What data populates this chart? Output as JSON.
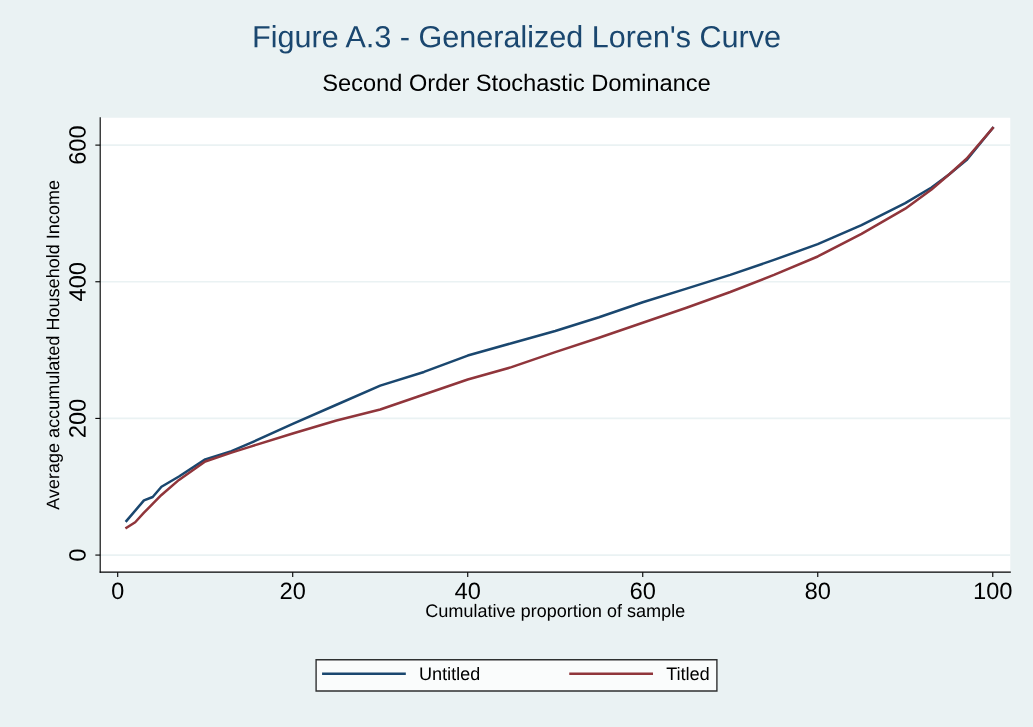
{
  "chart_data": {
    "type": "line",
    "title": "Figure A.3 - Generalized Loren's Curve",
    "subtitle": "Second Order Stochastic Dominance",
    "xlabel": "Cumulative proportion of sample",
    "ylabel": "Average accumulated Household Income",
    "xlim": [
      -2,
      102
    ],
    "xticks": [
      0,
      20,
      40,
      60,
      80,
      100
    ],
    "ylim": [
      -25,
      640
    ],
    "yticks": [
      0,
      200,
      400,
      600
    ],
    "grid": "y",
    "legend": "bottom",
    "line_style": "solid",
    "marker": "none",
    "series": [
      {
        "name": "Untitled",
        "color": "#1a476f",
        "x": [
          1,
          3,
          4,
          5,
          7,
          10,
          13,
          15,
          20,
          25,
          30,
          35,
          40,
          45,
          50,
          55,
          60,
          65,
          70,
          75,
          80,
          85,
          90,
          93,
          95,
          97,
          100
        ],
        "values": [
          50,
          80,
          85,
          100,
          115,
          140,
          152,
          163,
          192,
          220,
          248,
          268,
          292,
          310,
          328,
          348,
          370,
          390,
          410,
          432,
          455,
          483,
          515,
          538,
          557,
          578,
          625
        ]
      },
      {
        "name": "Titled",
        "color": "#90353b",
        "x": [
          1,
          2,
          3,
          5,
          7,
          10,
          13,
          15,
          20,
          25,
          30,
          35,
          40,
          45,
          50,
          55,
          60,
          65,
          70,
          75,
          80,
          85,
          90,
          93,
          95,
          97,
          100
        ],
        "values": [
          40,
          48,
          62,
          88,
          110,
          137,
          150,
          158,
          178,
          197,
          213,
          235,
          257,
          275,
          297,
          318,
          340,
          362,
          385,
          410,
          437,
          470,
          507,
          535,
          557,
          580,
          625
        ]
      }
    ]
  }
}
